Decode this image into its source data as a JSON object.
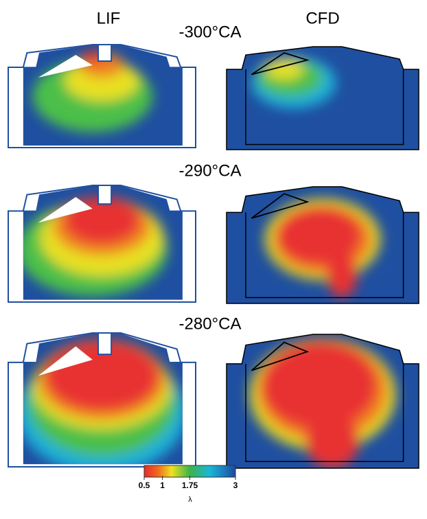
{
  "columns": [
    "LIF",
    "CFD"
  ],
  "rows": [
    "-300°CA",
    "-290°CA",
    "-280°CA"
  ],
  "colorbar": {
    "lim": [
      0.5,
      3
    ],
    "ticks": [
      0.5,
      1,
      1.75,
      3
    ],
    "label": "λ"
  }
}
